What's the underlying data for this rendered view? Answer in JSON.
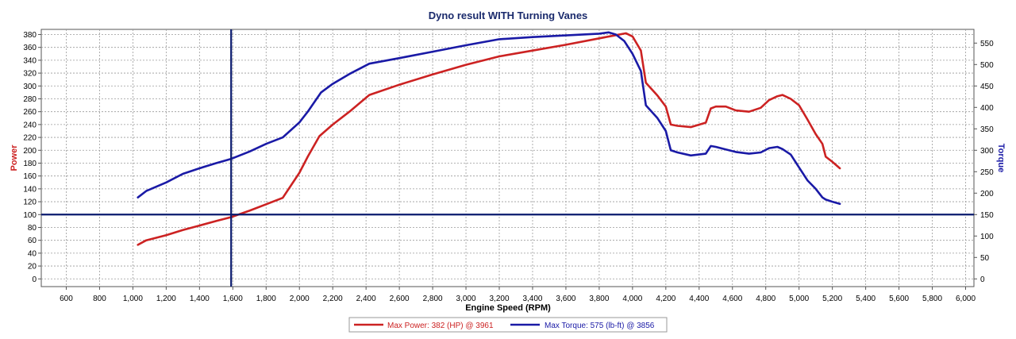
{
  "chart_data": {
    "type": "line",
    "title": "Dyno result WITH Turning Vanes",
    "xlabel": "Engine Speed (RPM)",
    "ylabel_left": "Power",
    "ylabel_right": "Torque",
    "xlim": [
      450,
      6050
    ],
    "ylim_left": [
      -12,
      388
    ],
    "ylim_right": [
      -18,
      582
    ],
    "x_ticks": [
      600,
      800,
      1000,
      1200,
      1400,
      1600,
      1800,
      2000,
      2200,
      2400,
      2600,
      2800,
      3000,
      3200,
      3400,
      3600,
      3800,
      4000,
      4200,
      4400,
      4600,
      4800,
      5000,
      5200,
      5400,
      5600,
      5800,
      6000
    ],
    "x_tick_labels": [
      "600",
      "800",
      "1,000",
      "1,200",
      "1,400",
      "1,600",
      "1,800",
      "2,000",
      "2,200",
      "2,400",
      "2,600",
      "2,800",
      "3,000",
      "3,200",
      "3,400",
      "3,600",
      "3,800",
      "4,000",
      "4,200",
      "4,400",
      "4,600",
      "4,800",
      "5,000",
      "5,200",
      "5,400",
      "5,600",
      "5,800",
      "6,000"
    ],
    "y_left_ticks": [
      0,
      20,
      40,
      60,
      80,
      100,
      120,
      140,
      160,
      180,
      200,
      220,
      240,
      260,
      280,
      300,
      320,
      340,
      360,
      380
    ],
    "y_right_ticks": [
      0,
      50,
      100,
      150,
      200,
      250,
      300,
      350,
      400,
      450,
      500,
      550
    ],
    "grid": true,
    "legend_position": "bottom-center",
    "cursor": {
      "x": 1590,
      "y_left": 100
    },
    "series": [
      {
        "name": "Max Power: 382 (HP) @ 3961",
        "axis": "left",
        "color": "#cc2222",
        "x": [
          1030,
          1080,
          1200,
          1300,
          1400,
          1500,
          1590,
          1700,
          1800,
          1900,
          2000,
          2050,
          2120,
          2200,
          2300,
          2420,
          2600,
          2800,
          3000,
          3200,
          3400,
          3600,
          3800,
          3900,
          3961,
          4000,
          4050,
          4080,
          4150,
          4200,
          4230,
          4270,
          4350,
          4440,
          4470,
          4500,
          4560,
          4620,
          4700,
          4770,
          4820,
          4870,
          4900,
          4950,
          5000,
          5050,
          5100,
          5140,
          5160,
          5200,
          5245
        ],
        "y": [
          53,
          60,
          68,
          76,
          83,
          90,
          96,
          106,
          116,
          126,
          165,
          190,
          222,
          240,
          260,
          286,
          302,
          318,
          333,
          346,
          355,
          364,
          374,
          379,
          382,
          377,
          355,
          305,
          285,
          268,
          240,
          238,
          236,
          243,
          265,
          268,
          268,
          262,
          260,
          266,
          278,
          284,
          286,
          280,
          270,
          248,
          225,
          210,
          190,
          182,
          172
        ]
      },
      {
        "name": "Max Torque: 575 (lb-ft) @ 3856",
        "axis": "right",
        "color": "#1a1aa6",
        "x": [
          1030,
          1080,
          1200,
          1300,
          1400,
          1500,
          1590,
          1700,
          1800,
          1900,
          2000,
          2050,
          2130,
          2200,
          2300,
          2420,
          2600,
          2800,
          3000,
          3200,
          3400,
          3600,
          3800,
          3856,
          3900,
          3950,
          4000,
          4050,
          4080,
          4150,
          4200,
          4230,
          4270,
          4350,
          4440,
          4470,
          4500,
          4560,
          4620,
          4700,
          4770,
          4820,
          4870,
          4900,
          4950,
          5000,
          5050,
          5100,
          5140,
          5160,
          5200,
          5245
        ],
        "y": [
          190,
          205,
          225,
          245,
          258,
          270,
          280,
          297,
          315,
          330,
          365,
          390,
          435,
          455,
          478,
          502,
          515,
          530,
          545,
          559,
          564,
          568,
          572,
          575,
          570,
          555,
          525,
          485,
          405,
          375,
          345,
          300,
          295,
          288,
          292,
          310,
          308,
          302,
          296,
          292,
          295,
          305,
          308,
          303,
          290,
          260,
          230,
          210,
          190,
          185,
          180,
          175
        ]
      }
    ]
  }
}
